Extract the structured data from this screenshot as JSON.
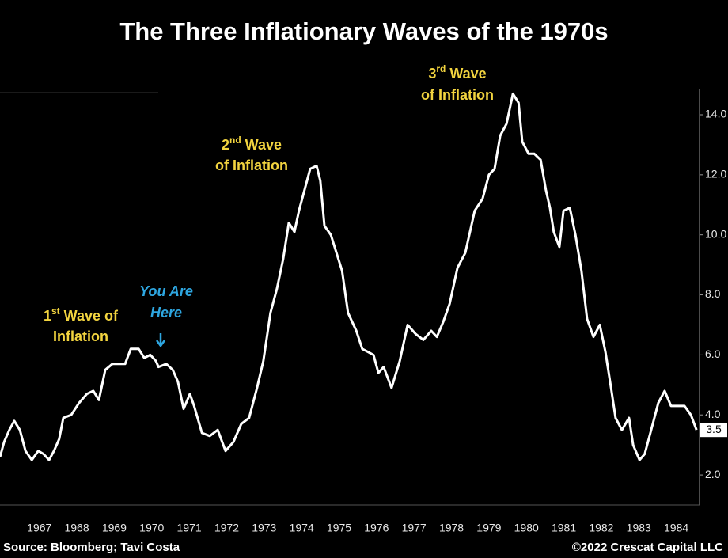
{
  "chart_data": {
    "type": "line",
    "title": "The Three Inflationary Waves of the 1970s",
    "source": "Source: Bloomberg; Tavi Costa",
    "copyright": "©2022 Crescat Capital LLC",
    "color": "#ffffff",
    "x": [
      1966.45,
      1966.56,
      1966.7,
      1966.83,
      1966.98,
      1967.13,
      1967.3,
      1967.47,
      1967.61,
      1967.76,
      1967.89,
      1968.03,
      1968.14,
      1968.35,
      1968.56,
      1968.77,
      1968.94,
      1969.09,
      1969.26,
      1969.45,
      1969.62,
      1969.79,
      1969.94,
      1970.15,
      1970.3,
      1970.46,
      1970.61,
      1970.68,
      1970.89,
      1971.06,
      1971.2,
      1971.35,
      1971.52,
      1971.63,
      1971.84,
      1972.05,
      1972.26,
      1972.47,
      1972.68,
      1972.89,
      1973.1,
      1973.31,
      1973.48,
      1973.67,
      1973.84,
      1974.01,
      1974.16,
      1974.31,
      1974.43,
      1974.58,
      1974.73,
      1974.9,
      1975.0,
      1975.11,
      1975.28,
      1975.43,
      1975.58,
      1975.74,
      1975.96,
      1976.12,
      1976.27,
      1976.42,
      1976.55,
      1976.69,
      1976.9,
      1977.12,
      1977.33,
      1977.54,
      1977.75,
      1977.96,
      1978.11,
      1978.28,
      1978.45,
      1978.66,
      1978.87,
      1979.12,
      1979.33,
      1979.5,
      1979.65,
      1979.8,
      1979.97,
      1980.14,
      1980.29,
      1980.39,
      1980.56,
      1980.71,
      1980.88,
      1981.02,
      1981.13,
      1981.23,
      1981.38,
      1981.49,
      1981.66,
      1981.81,
      1981.97,
      1982.12,
      1982.29,
      1982.46,
      1982.61,
      1982.76,
      1982.88,
      1983.05,
      1983.24,
      1983.35,
      1983.52,
      1983.66,
      1983.83,
      1984.02,
      1984.19,
      1984.36,
      1984.57,
      1984.72,
      1984.89,
      1985.04
    ],
    "values": [
      2.6,
      3.1,
      3.5,
      3.8,
      3.5,
      2.8,
      2.5,
      2.8,
      2.7,
      2.5,
      2.8,
      3.2,
      3.9,
      4.0,
      4.4,
      4.7,
      4.8,
      4.5,
      5.5,
      5.7,
      5.7,
      5.7,
      6.2,
      6.2,
      5.9,
      6.0,
      5.8,
      5.6,
      5.7,
      5.5,
      5.1,
      4.2,
      4.7,
      4.3,
      3.4,
      3.3,
      3.5,
      2.8,
      3.1,
      3.7,
      3.9,
      4.9,
      5.8,
      7.4,
      8.2,
      9.2,
      10.4,
      10.1,
      10.8,
      11.5,
      12.2,
      12.3,
      11.8,
      10.3,
      10.0,
      9.4,
      8.8,
      7.4,
      6.8,
      6.2,
      6.1,
      6.0,
      5.4,
      5.6,
      4.9,
      5.8,
      7.0,
      6.7,
      6.5,
      6.8,
      6.6,
      7.1,
      7.7,
      8.9,
      9.4,
      10.8,
      11.2,
      12.0,
      12.2,
      13.3,
      13.7,
      14.7,
      14.4,
      13.1,
      12.7,
      12.7,
      12.5,
      11.5,
      10.9,
      10.1,
      9.6,
      10.8,
      10.9,
      10.0,
      8.8,
      7.2,
      6.6,
      7.0,
      6.1,
      4.9,
      3.9,
      3.5,
      3.9,
      3.0,
      2.5,
      2.7,
      3.5,
      4.4,
      4.8,
      4.3,
      4.3,
      4.3,
      4.0,
      3.5
    ],
    "xlim": [
      1966.45,
      1985.1
    ],
    "ylim": [
      1,
      14.87
    ],
    "yticks": [
      {
        "value": 2,
        "label": "2.0"
      },
      {
        "value": 4,
        "label": "4.0"
      },
      {
        "value": 6,
        "label": "6.0"
      },
      {
        "value": 8,
        "label": "8.0"
      },
      {
        "value": 10,
        "label": "10.0"
      },
      {
        "value": 12,
        "label": "12.0"
      },
      {
        "value": 14,
        "label": "14.0"
      }
    ],
    "xticks": [
      {
        "value": 1967.5,
        "label": "1967"
      },
      {
        "value": 1968.5,
        "label": "1968"
      },
      {
        "value": 1969.5,
        "label": "1969"
      },
      {
        "value": 1970.5,
        "label": "1970"
      },
      {
        "value": 1971.5,
        "label": "1971"
      },
      {
        "value": 1972.5,
        "label": "1972"
      },
      {
        "value": 1973.5,
        "label": "1973"
      },
      {
        "value": 1974.5,
        "label": "1974"
      },
      {
        "value": 1975.5,
        "label": "1975"
      },
      {
        "value": 1976.5,
        "label": "1976"
      },
      {
        "value": 1977.5,
        "label": "1977"
      },
      {
        "value": 1978.5,
        "label": "1978"
      },
      {
        "value": 1979.5,
        "label": "1979"
      },
      {
        "value": 1980.5,
        "label": "1980"
      },
      {
        "value": 1981.5,
        "label": "1981"
      },
      {
        "value": 1982.5,
        "label": "1982"
      },
      {
        "value": 1983.5,
        "label": "1983"
      },
      {
        "value": 1984.5,
        "label": "1984"
      }
    ],
    "annotations": [
      {
        "number": "1",
        "suffix": "st",
        "text": " Wave of",
        "text2": "Inflation",
        "color": "#f2d43f",
        "italic": false
      },
      {
        "text": "You Are",
        "text2": "Here",
        "color": "#2ea6e0",
        "italic": true
      },
      {
        "number": "2",
        "suffix": "nd",
        "text": " Wave",
        "text2": "of Inflation",
        "color": "#f2d43f",
        "italic": false
      },
      {
        "number": "3",
        "suffix": "rd",
        "text": " Wave",
        "text2": "of Inflation",
        "color": "#f2d43f",
        "italic": false
      }
    ]
  }
}
